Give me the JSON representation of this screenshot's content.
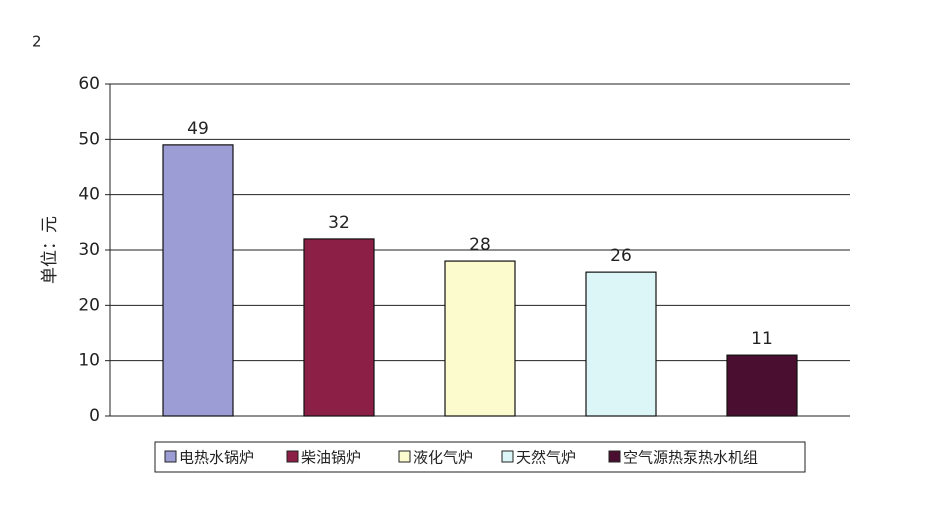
{
  "chart_data": {
    "type": "bar",
    "annotations": [
      "2"
    ],
    "y_label": "单位：元",
    "categories": [
      null
    ],
    "series": [
      {
        "name": "电热水锅炉",
        "color": "#9d9dd5",
        "values": [
          49
        ]
      },
      {
        "name": "柴油锅炉",
        "color": "#8c1f45",
        "values": [
          32
        ]
      },
      {
        "name": "液化气炉",
        "color": "#fbfbcd",
        "values": [
          28
        ]
      },
      {
        "name": "天然气炉",
        "color": "#dcf6f7",
        "values": [
          26
        ]
      },
      {
        "name": "空气源热泵热水机组",
        "color": "#4a0f30",
        "values": [
          11
        ]
      }
    ],
    "ylim": [
      0,
      60
    ],
    "yticks": [
      0,
      10,
      20,
      30,
      40,
      50,
      60
    ],
    "grid": true,
    "legend": "bottom"
  }
}
